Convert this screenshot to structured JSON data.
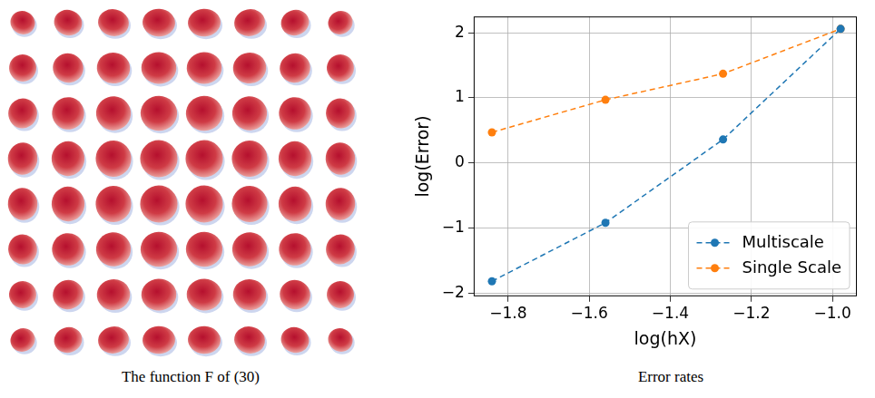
{
  "chart_data": {
    "type": "line",
    "x_label": "log(hX)",
    "y_label": "log(Error)",
    "x": [
      -1.84,
      -1.56,
      -1.27,
      -0.98
    ],
    "series": [
      {
        "name": "Multiscale",
        "color": "#1f77b4",
        "values": [
          -1.82,
          -0.92,
          0.36,
          2.06
        ],
        "marker": "circle",
        "line_style": "dashed"
      },
      {
        "name": "Single Scale",
        "color": "#ff7f0e",
        "values": [
          0.47,
          0.97,
          1.37,
          2.06
        ],
        "marker": "circle",
        "line_style": "dashed"
      }
    ],
    "xlim": [
      -1.885,
      -0.94
    ],
    "xticks": [
      {
        "value": -1.8,
        "label": "−1.8"
      },
      {
        "value": -1.6,
        "label": "−1.6"
      },
      {
        "value": -1.4,
        "label": "−1.4"
      },
      {
        "value": -1.2,
        "label": "−1.2"
      },
      {
        "value": -1.0,
        "label": "−1.0"
      }
    ],
    "ylim": [
      -2.05,
      2.25
    ],
    "yticks": [
      {
        "value": -2,
        "label": "−2"
      },
      {
        "value": -1,
        "label": "−1"
      },
      0,
      1,
      2
    ],
    "grid": true,
    "legend": "lower right"
  },
  "left_panel": {
    "caption": "The function F of (30)"
  },
  "right_panel": {
    "caption": "Error rates"
  }
}
